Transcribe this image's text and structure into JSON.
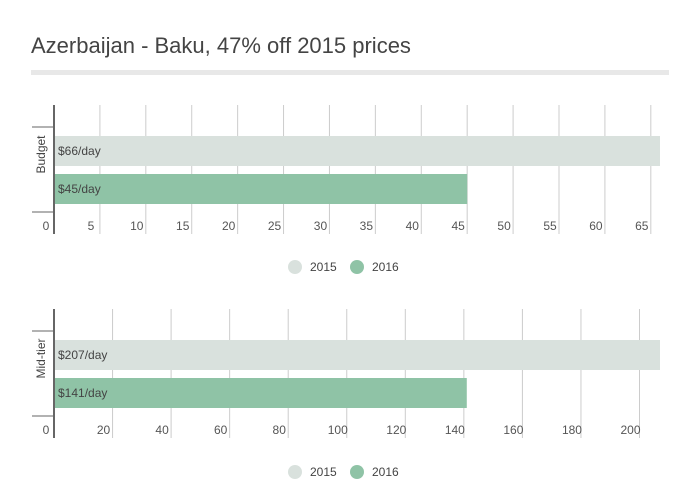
{
  "title": "Azerbaijan - Baku, 47% off 2015 prices",
  "colors": {
    "2015": "#d9e1dd",
    "2016": "#8fc3a6",
    "grid": "#cccccc",
    "axis": "#333333"
  },
  "chart_data": [
    {
      "type": "bar",
      "orientation": "horizontal",
      "category": "Budget",
      "series": [
        {
          "name": "2015",
          "values": [
            66
          ],
          "label": "$66/day"
        },
        {
          "name": "2016",
          "values": [
            45
          ],
          "label": "$45/day"
        }
      ],
      "xlim": [
        0,
        66
      ],
      "xticks": [
        0,
        5,
        10,
        15,
        20,
        25,
        30,
        35,
        40,
        45,
        50,
        55,
        60,
        65
      ],
      "legend": [
        "2015",
        "2016"
      ],
      "legend_position": "bottom",
      "grid": true
    },
    {
      "type": "bar",
      "orientation": "horizontal",
      "category": "Mid-tier",
      "series": [
        {
          "name": "2015",
          "values": [
            207
          ],
          "label": "$207/day"
        },
        {
          "name": "2016",
          "values": [
            141
          ],
          "label": "$141/day"
        }
      ],
      "xlim": [
        0,
        207
      ],
      "xticks": [
        0,
        20,
        40,
        60,
        80,
        100,
        120,
        140,
        160,
        180,
        200
      ],
      "legend": [
        "2015",
        "2016"
      ],
      "legend_position": "bottom",
      "grid": true
    }
  ]
}
